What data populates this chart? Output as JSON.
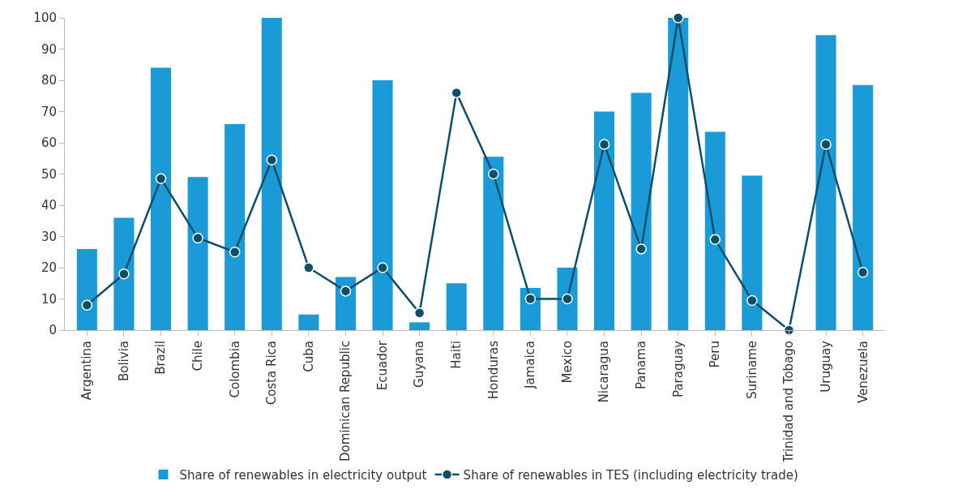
{
  "chart_data": {
    "type": "bar",
    "categories": [
      "Argentina",
      "Bolivia",
      "Brazil",
      "Chile",
      "Colombia",
      "Costa Rica",
      "Cuba",
      "Dominican Republic",
      "Ecuador",
      "Guyana",
      "Haiti",
      "Honduras",
      "Jamaica",
      "Mexico",
      "Nicaragua",
      "Panama",
      "Paraguay",
      "Peru",
      "Suriname",
      "Trinidad and Tobago",
      "Uruguay",
      "Venezuela"
    ],
    "series": [
      {
        "name": "Share of renewables in electricity output",
        "color": "#1a9ad6",
        "values": [
          26,
          36,
          84,
          49,
          66,
          100,
          5,
          17,
          80,
          2.5,
          15,
          55.5,
          13.5,
          20,
          70,
          76,
          100,
          63.5,
          49.5,
          0,
          94.5,
          78.5
        ]
      },
      {
        "name": "Share of renewables in TES (including electricity trade)",
        "type": "line",
        "color": "#0b4f6c",
        "marker": "circle",
        "values": [
          8,
          18,
          48.5,
          29.5,
          25,
          54.5,
          20,
          12.5,
          20,
          5.5,
          76,
          50,
          10,
          10,
          59.5,
          26,
          100,
          29,
          9.5,
          0,
          59.5,
          18.5
        ]
      }
    ],
    "ylim": [
      0,
      100
    ],
    "yticks": [
      0,
      10,
      20,
      30,
      40,
      50,
      60,
      70,
      80,
      90,
      100
    ],
    "legend": "bottom"
  }
}
